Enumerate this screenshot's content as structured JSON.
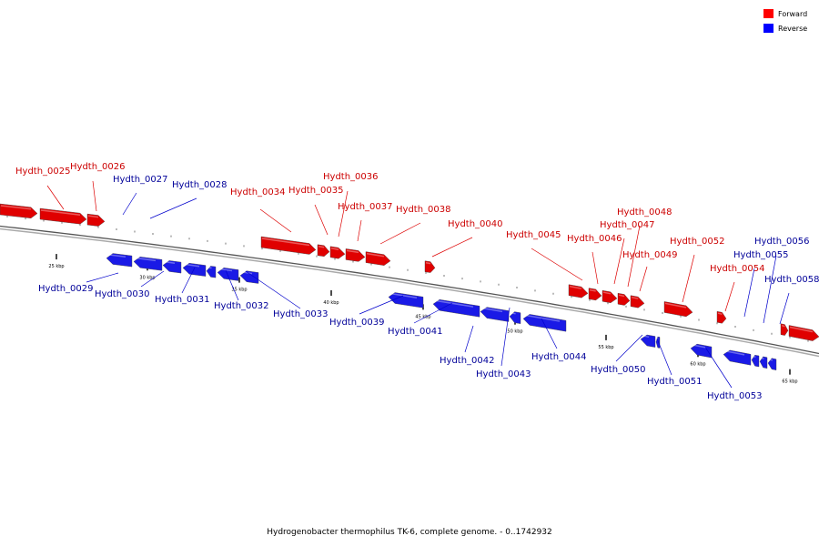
{
  "caption": "Hydrogenobacter thermophilus TK-6, complete genome. - 0..1742932",
  "legend": [
    {
      "label": "Forward",
      "color": "#ff0000"
    },
    {
      "label": "Reverse",
      "color": "#0000ff"
    }
  ],
  "colors": {
    "forward": "#e00000",
    "reverse": "#1a1ae6",
    "forward_text": "#cc0000",
    "reverse_text": "#000099",
    "backbone": "#888888"
  },
  "scale": [
    {
      "label": "25 kbp"
    },
    {
      "label": "30 kbp"
    },
    {
      "label": "35 kbp"
    },
    {
      "label": "40 kbp"
    },
    {
      "label": "45 kbp"
    },
    {
      "label": "50 kbp"
    },
    {
      "label": "55 kbp"
    },
    {
      "label": "60 kbp"
    },
    {
      "label": "65 kbp"
    }
  ],
  "genes": [
    {
      "name": "Hydth_0025",
      "strand": "forward"
    },
    {
      "name": "Hydth_0026",
      "strand": "forward"
    },
    {
      "name": "Hydth_0027",
      "strand": "reverse"
    },
    {
      "name": "Hydth_0028",
      "strand": "reverse"
    },
    {
      "name": "Hydth_0029",
      "strand": "reverse"
    },
    {
      "name": "Hydth_0030",
      "strand": "reverse"
    },
    {
      "name": "Hydth_0031",
      "strand": "reverse"
    },
    {
      "name": "Hydth_0032",
      "strand": "reverse"
    },
    {
      "name": "Hydth_0033",
      "strand": "reverse"
    },
    {
      "name": "Hydth_0034",
      "strand": "forward"
    },
    {
      "name": "Hydth_0035",
      "strand": "forward"
    },
    {
      "name": "Hydth_0036",
      "strand": "forward"
    },
    {
      "name": "Hydth_0037",
      "strand": "forward"
    },
    {
      "name": "Hydth_0038",
      "strand": "forward"
    },
    {
      "name": "Hydth_0039",
      "strand": "reverse"
    },
    {
      "name": "Hydth_0040",
      "strand": "forward"
    },
    {
      "name": "Hydth_0041",
      "strand": "reverse"
    },
    {
      "name": "Hydth_0042",
      "strand": "reverse"
    },
    {
      "name": "Hydth_0043",
      "strand": "reverse"
    },
    {
      "name": "Hydth_0044",
      "strand": "reverse"
    },
    {
      "name": "Hydth_0045",
      "strand": "forward"
    },
    {
      "name": "Hydth_0046",
      "strand": "forward"
    },
    {
      "name": "Hydth_0047",
      "strand": "forward"
    },
    {
      "name": "Hydth_0048",
      "strand": "forward"
    },
    {
      "name": "Hydth_0049",
      "strand": "forward"
    },
    {
      "name": "Hydth_0050",
      "strand": "reverse"
    },
    {
      "name": "Hydth_0051",
      "strand": "reverse"
    },
    {
      "name": "Hydth_0052",
      "strand": "forward"
    },
    {
      "name": "Hydth_0053",
      "strand": "reverse"
    },
    {
      "name": "Hydth_0054",
      "strand": "forward"
    },
    {
      "name": "Hydth_0055",
      "strand": "reverse"
    },
    {
      "name": "Hydth_0056",
      "strand": "reverse"
    },
    {
      "name": "Hydth_0058",
      "strand": "reverse"
    }
  ]
}
